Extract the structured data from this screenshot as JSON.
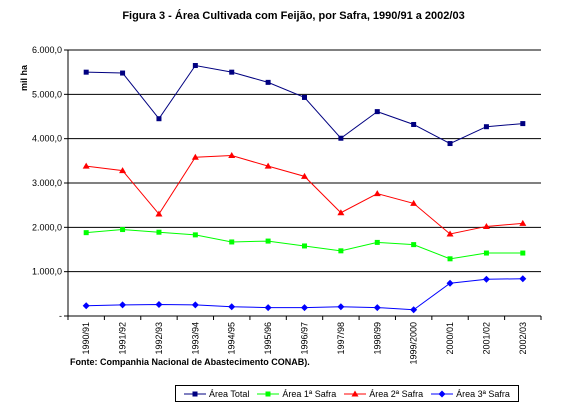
{
  "chart_data": {
    "type": "line",
    "title": "Figura 3 - Área Cultivada com Feijão, por Safra, 1990/91 a 2002/03",
    "ylabel": "mil ha",
    "xlabel": "",
    "source": "Fonte: Companhia Nacional de Abastecimento CONAB).",
    "ylim": [
      0,
      6000
    ],
    "yticks": [
      "-",
      "1.000,0",
      "2.000,0",
      "3.000,0",
      "4.000,0",
      "5.000,0",
      "6.000,0"
    ],
    "grid": true,
    "legend_position": "bottom",
    "categories": [
      "1990/91",
      "1991/92",
      "1992/93",
      "1993/94",
      "1994/95",
      "1995/96",
      "1996/97",
      "1997/98",
      "1998/99",
      "1999/2000",
      "2000/01",
      "2001/02",
      "2002/03"
    ],
    "series": [
      {
        "name": "Área Total",
        "color": "#000080",
        "marker": "square",
        "values": [
          5500,
          5480,
          4450,
          5650,
          5500,
          5270,
          4930,
          4010,
          4610,
          4320,
          3890,
          4270,
          4340
        ]
      },
      {
        "name": "Área 1ª Safra",
        "color": "#00ff00",
        "marker": "square",
        "values": [
          1880,
          1950,
          1890,
          1830,
          1670,
          1690,
          1580,
          1470,
          1660,
          1610,
          1290,
          1420,
          1420
        ]
      },
      {
        "name": "Área 2ª Safra",
        "color": "#ff0000",
        "marker": "triangle",
        "values": [
          3380,
          3280,
          2300,
          3580,
          3620,
          3380,
          3150,
          2330,
          2760,
          2540,
          1850,
          2020,
          2090
        ]
      },
      {
        "name": "Área 3ª Safra",
        "color": "#0000ff",
        "marker": "diamond",
        "values": [
          230,
          250,
          260,
          250,
          210,
          190,
          190,
          210,
          190,
          140,
          740,
          830,
          840
        ]
      }
    ]
  }
}
